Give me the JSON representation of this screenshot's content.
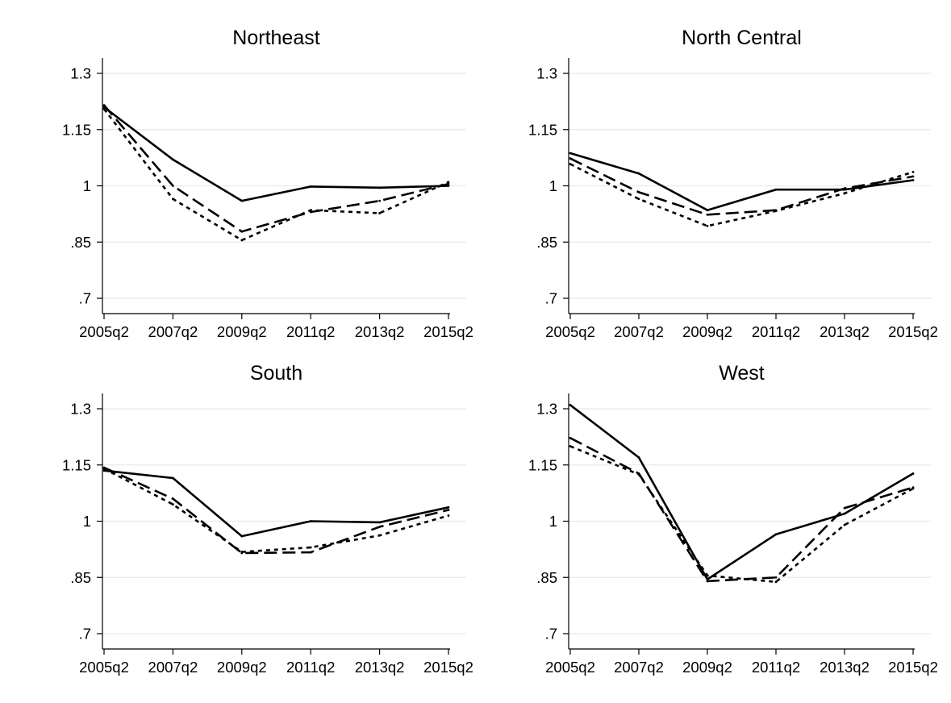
{
  "chart_data": [
    {
      "type": "line",
      "title": "Northeast",
      "categories": [
        "2005q2",
        "2007q2",
        "2009q2",
        "2011q2",
        "2013q2",
        "2015q2"
      ],
      "yticks": [
        ".7",
        ".85",
        "1",
        "1.15",
        "1.3"
      ],
      "ylim": [
        0.7,
        1.3
      ],
      "grid": true,
      "series": [
        {
          "values": [
            1.21,
            1.07,
            0.96,
            0.998,
            0.995,
            1.0
          ],
          "style": "solid"
        },
        {
          "values": [
            1.215,
            1.0,
            0.878,
            0.93,
            0.96,
            1.005
          ],
          "style": "dash"
        },
        {
          "values": [
            1.205,
            0.965,
            0.855,
            0.935,
            0.927,
            1.01
          ],
          "style": "dot"
        }
      ]
    },
    {
      "type": "line",
      "title": "North Central",
      "categories": [
        "2005q2",
        "2007q2",
        "2009q2",
        "2011q2",
        "2013q2",
        "2015q2"
      ],
      "yticks": [
        ".7",
        ".85",
        "1",
        "1.15",
        "1.3"
      ],
      "ylim": [
        0.7,
        1.3
      ],
      "grid": true,
      "series": [
        {
          "values": [
            1.087,
            1.033,
            0.935,
            0.99,
            0.99,
            1.015
          ],
          "style": "solid"
        },
        {
          "values": [
            1.073,
            0.983,
            0.923,
            0.935,
            0.993,
            1.025
          ],
          "style": "dash"
        },
        {
          "values": [
            1.058,
            0.965,
            0.893,
            0.933,
            0.98,
            1.037
          ],
          "style": "dot"
        }
      ]
    },
    {
      "type": "line",
      "title": "South",
      "categories": [
        "2005q2",
        "2007q2",
        "2009q2",
        "2011q2",
        "2013q2",
        "2015q2"
      ],
      "yticks": [
        ".7",
        ".85",
        "1",
        "1.15",
        "1.3"
      ],
      "ylim": [
        0.7,
        1.3
      ],
      "grid": true,
      "series": [
        {
          "values": [
            1.135,
            1.115,
            0.96,
            1.0,
            0.997,
            1.037
          ],
          "style": "solid"
        },
        {
          "values": [
            1.143,
            1.06,
            0.915,
            0.917,
            0.985,
            1.03
          ],
          "style": "dash"
        },
        {
          "values": [
            1.14,
            1.045,
            0.918,
            0.93,
            0.962,
            1.015
          ],
          "style": "dot"
        }
      ]
    },
    {
      "type": "line",
      "title": "West",
      "categories": [
        "2005q2",
        "2007q2",
        "2009q2",
        "2011q2",
        "2013q2",
        "2015q2"
      ],
      "yticks": [
        ".7",
        ".85",
        "1",
        "1.15",
        "1.3"
      ],
      "ylim": [
        0.7,
        1.3
      ],
      "grid": true,
      "series": [
        {
          "values": [
            1.31,
            1.17,
            0.845,
            0.965,
            1.02,
            1.127
          ],
          "style": "solid"
        },
        {
          "values": [
            1.222,
            1.127,
            0.84,
            0.85,
            1.035,
            1.09
          ],
          "style": "dash"
        },
        {
          "values": [
            1.2,
            1.125,
            0.855,
            0.838,
            0.99,
            1.087
          ],
          "style": "dot"
        }
      ]
    }
  ]
}
